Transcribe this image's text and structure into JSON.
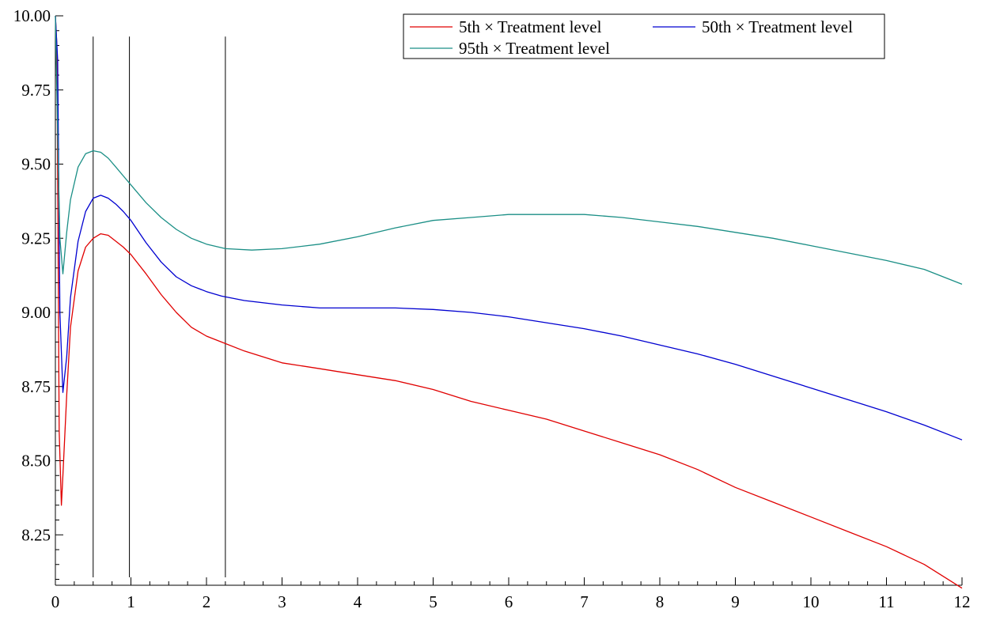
{
  "chart_data": {
    "type": "line",
    "title": "",
    "xlabel": "",
    "ylabel": "",
    "xlim": [
      0,
      12
    ],
    "ylim": [
      8.08,
      10.0
    ],
    "grid": false,
    "legend_position": "top-right",
    "x_ticks": [
      0,
      1,
      2,
      3,
      4,
      5,
      6,
      7,
      8,
      9,
      10,
      11,
      12
    ],
    "x_tick_labels": [
      "0",
      "1",
      "2",
      "3",
      "4",
      "5",
      "6",
      "7",
      "8",
      "9",
      "10",
      "11",
      "12"
    ],
    "y_ticks": [
      8.25,
      8.5,
      8.75,
      9.0,
      9.25,
      9.5,
      9.75,
      10.0
    ],
    "y_tick_labels": [
      "8.25",
      "8.50",
      "8.75",
      "9.00",
      "9.25",
      "9.50",
      "9.75",
      "10.00"
    ],
    "vertical_lines": [
      0.5,
      0.98,
      2.25
    ],
    "vertical_line_ymax": 9.93,
    "series": [
      {
        "name": "5th × Treatment level",
        "color": "#e00000",
        "x": [
          0.0,
          0.02,
          0.05,
          0.08,
          0.1,
          0.15,
          0.2,
          0.3,
          0.4,
          0.5,
          0.6,
          0.7,
          0.8,
          0.9,
          1.0,
          1.2,
          1.4,
          1.6,
          1.8,
          2.0,
          2.2,
          2.5,
          3.0,
          3.5,
          4.0,
          4.5,
          5.0,
          5.5,
          6.0,
          6.5,
          7.0,
          7.5,
          8.0,
          8.5,
          9.0,
          9.5,
          10.0,
          10.5,
          11.0,
          11.5,
          12.0
        ],
        "values": [
          10.0,
          9.9,
          8.6,
          8.35,
          8.45,
          8.72,
          8.95,
          9.14,
          9.22,
          9.25,
          9.265,
          9.26,
          9.24,
          9.22,
          9.195,
          9.13,
          9.06,
          9.0,
          8.95,
          8.92,
          8.9,
          8.87,
          8.83,
          8.81,
          8.79,
          8.77,
          8.74,
          8.7,
          8.67,
          8.64,
          8.6,
          8.56,
          8.52,
          8.47,
          8.41,
          8.36,
          8.31,
          8.26,
          8.21,
          8.15,
          8.07
        ]
      },
      {
        "name": "50th × Treatment level",
        "color": "#0000d0",
        "x": [
          0.0,
          0.03,
          0.06,
          0.1,
          0.15,
          0.2,
          0.3,
          0.4,
          0.5,
          0.6,
          0.7,
          0.8,
          0.9,
          1.0,
          1.2,
          1.4,
          1.6,
          1.8,
          2.0,
          2.2,
          2.5,
          3.0,
          3.5,
          4.0,
          4.5,
          5.0,
          5.5,
          6.0,
          6.5,
          7.0,
          7.5,
          8.0,
          8.5,
          9.0,
          9.5,
          10.0,
          10.5,
          11.0,
          11.5,
          12.0
        ],
        "values": [
          10.0,
          9.85,
          9.0,
          8.73,
          8.85,
          9.05,
          9.24,
          9.34,
          9.385,
          9.395,
          9.385,
          9.365,
          9.34,
          9.31,
          9.235,
          9.17,
          9.12,
          9.09,
          9.07,
          9.055,
          9.04,
          9.025,
          9.015,
          9.015,
          9.015,
          9.01,
          9.0,
          8.985,
          8.965,
          8.945,
          8.92,
          8.89,
          8.86,
          8.825,
          8.785,
          8.745,
          8.705,
          8.665,
          8.62,
          8.57
        ]
      },
      {
        "name": "95th × Treatment level",
        "color": "#1b8f86",
        "x": [
          0.0,
          0.03,
          0.06,
          0.1,
          0.15,
          0.2,
          0.3,
          0.4,
          0.5,
          0.6,
          0.7,
          0.8,
          0.9,
          1.0,
          1.2,
          1.4,
          1.6,
          1.8,
          2.0,
          2.25,
          2.6,
          3.0,
          3.5,
          4.0,
          4.5,
          5.0,
          5.5,
          6.0,
          6.5,
          7.0,
          7.5,
          8.0,
          8.5,
          9.0,
          9.5,
          10.0,
          10.5,
          11.0,
          11.5,
          12.0
        ],
        "values": [
          10.0,
          9.6,
          9.25,
          9.13,
          9.27,
          9.38,
          9.49,
          9.535,
          9.545,
          9.54,
          9.52,
          9.49,
          9.46,
          9.43,
          9.37,
          9.32,
          9.28,
          9.25,
          9.23,
          9.215,
          9.21,
          9.215,
          9.23,
          9.255,
          9.285,
          9.31,
          9.32,
          9.33,
          9.33,
          9.33,
          9.32,
          9.305,
          9.29,
          9.27,
          9.25,
          9.225,
          9.2,
          9.175,
          9.145,
          9.095
        ]
      }
    ]
  }
}
